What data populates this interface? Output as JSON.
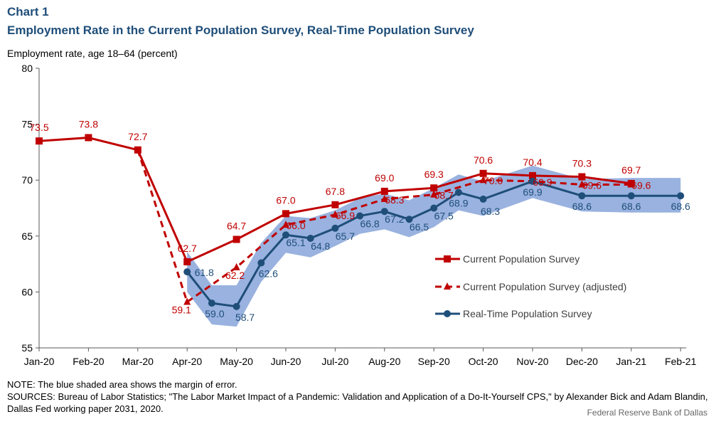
{
  "header": {
    "chart_number": "Chart 1",
    "title": "Employment Rate in the Current Population Survey, Real-Time Population Survey"
  },
  "footer": {
    "note": "NOTE: The blue shaded area shows the margin of error.",
    "sources": "SOURCES: Bureau of Labor Statistics; \"The Labor Market Impact of a Pandemic: Validation and Application of a Do-It-Yourself  CPS,\" by Alexander Bick and Adam Blandin, Dallas Fed working paper 2031, 2020.",
    "source_credit": "Federal Reserve Bank of Dallas"
  },
  "colors": {
    "cps": "#c00000",
    "rps": "#1f4e79",
    "band": "#8eaadb",
    "axis": "#595959"
  },
  "chart_data": {
    "type": "line",
    "ylabel": "Employment rate, age 18–64 (percent)",
    "xlabel": "",
    "ylim": [
      55,
      80
    ],
    "yticks": [
      55,
      60,
      65,
      70,
      75,
      80
    ],
    "x_labels": [
      "Jan-20",
      "Feb-20",
      "Mar-20",
      "Apr-20",
      "May-20",
      "Jun-20",
      "Jul-20",
      "Aug-20",
      "Sep-20",
      "Oct-20",
      "Nov-20",
      "Dec-20",
      "Jan-21",
      "Feb-21"
    ],
    "grid": false,
    "legend_position": "bottom-right",
    "series": [
      {
        "name": "Current Population Survey",
        "style": "solid-square",
        "points": [
          {
            "x": 0,
            "y": 73.5,
            "label": "73.5"
          },
          {
            "x": 1,
            "y": 73.8,
            "label": "73.8"
          },
          {
            "x": 2,
            "y": 72.7,
            "label": "72.7"
          },
          {
            "x": 3,
            "y": 62.7,
            "label": "62.7"
          },
          {
            "x": 4,
            "y": 64.7,
            "label": "64.7"
          },
          {
            "x": 5,
            "y": 67.0,
            "label": "67.0"
          },
          {
            "x": 6,
            "y": 67.8,
            "label": "67.8"
          },
          {
            "x": 7,
            "y": 69.0,
            "label": "69.0"
          },
          {
            "x": 8,
            "y": 69.3,
            "label": "69.3"
          },
          {
            "x": 9,
            "y": 70.6,
            "label": "70.6"
          },
          {
            "x": 10,
            "y": 70.4,
            "label": "70.4"
          },
          {
            "x": 11,
            "y": 70.3,
            "label": "70.3"
          },
          {
            "x": 12,
            "y": 69.7,
            "label": "69.7"
          }
        ]
      },
      {
        "name": "Current Population Survey (adjusted)",
        "style": "dashed-triangle",
        "points": [
          {
            "x": 2,
            "y": 72.7,
            "label": "",
            "marker": false
          },
          {
            "x": 3,
            "y": 59.1,
            "label": "59.1"
          },
          {
            "x": 4,
            "y": 62.2,
            "label": "62.2"
          },
          {
            "x": 5,
            "y": 66.0,
            "label": "66.0"
          },
          {
            "x": 6,
            "y": 66.9,
            "label": "66.9"
          },
          {
            "x": 7,
            "y": 68.3,
            "label": "68.3"
          },
          {
            "x": 8,
            "y": 68.7,
            "label": "68.7"
          },
          {
            "x": 9,
            "y": 70.0,
            "label": "70.0"
          },
          {
            "x": 10,
            "y": 69.9,
            "label": "69.9"
          },
          {
            "x": 11,
            "y": 69.6,
            "label": "69.6"
          },
          {
            "x": 12,
            "y": 69.6,
            "label": "69.6"
          }
        ]
      },
      {
        "name": "Real-Time Population Survey",
        "style": "solid-circle",
        "points": [
          {
            "x": 3,
            "y": 61.8,
            "label": "61.8"
          },
          {
            "x": 3.5,
            "y": 59.0,
            "label": "59.0"
          },
          {
            "x": 4,
            "y": 58.7,
            "label": "58.7"
          },
          {
            "x": 4.5,
            "y": 62.6,
            "label": "62.6"
          },
          {
            "x": 5,
            "y": 65.1,
            "label": "65.1"
          },
          {
            "x": 5.5,
            "y": 64.8,
            "label": "64.8"
          },
          {
            "x": 6,
            "y": 65.7,
            "label": "65.7"
          },
          {
            "x": 6.5,
            "y": 66.8,
            "label": "66.8"
          },
          {
            "x": 7,
            "y": 67.2,
            "label": "67.2"
          },
          {
            "x": 7.5,
            "y": 66.5,
            "label": "66.5"
          },
          {
            "x": 8,
            "y": 67.5,
            "label": "67.5"
          },
          {
            "x": 8.5,
            "y": 68.9,
            "label": "68.9"
          },
          {
            "x": 9,
            "y": 68.3,
            "label": "68.3"
          },
          {
            "x": 10,
            "y": 69.9,
            "label": "69.9"
          },
          {
            "x": 11,
            "y": 68.6,
            "label": "68.6"
          },
          {
            "x": 12,
            "y": 68.6,
            "label": "68.6"
          },
          {
            "x": 13,
            "y": 68.6,
            "label": "68.6"
          }
        ]
      }
    ],
    "margin_of_error_band": {
      "x": [
        3,
        3.5,
        4,
        4.5,
        5,
        5.5,
        6,
        6.5,
        7,
        7.5,
        8,
        8.5,
        9,
        10,
        11,
        12,
        13
      ],
      "upper": [
        63.6,
        60.6,
        60.6,
        64.4,
        66.8,
        66.6,
        67.3,
        68.4,
        68.8,
        68.2,
        69.3,
        70.5,
        69.9,
        71.3,
        70.1,
        70.2,
        70.2
      ],
      "lower": [
        60.0,
        57.1,
        56.9,
        60.9,
        63.5,
        63.1,
        64.1,
        65.2,
        65.6,
        64.9,
        65.8,
        67.3,
        66.8,
        68.4,
        67.2,
        67.1,
        67.1
      ]
    }
  }
}
